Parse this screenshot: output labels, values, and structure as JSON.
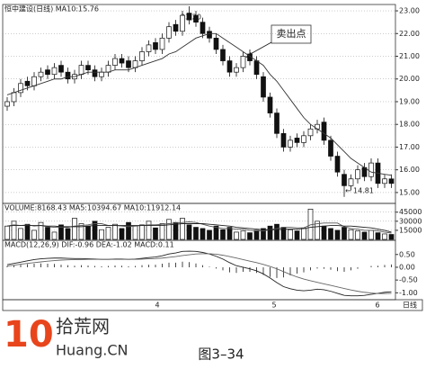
{
  "chart_data": [
    {
      "type": "candlestick",
      "title": "恒中建设(日线) MA10:15.76",
      "open": [
        18.8,
        19.0,
        19.4,
        19.9,
        19.7,
        20.1,
        20.4,
        20.2,
        20.6,
        20.3,
        20.0,
        20.2,
        20.6,
        20.4,
        20.1,
        20.3,
        20.6,
        20.9,
        20.8,
        20.5,
        20.8,
        21.2,
        21.6,
        21.3,
        21.8,
        22.4,
        22.1,
        22.9,
        22.8,
        22.5,
        22.1,
        21.8,
        21.3,
        20.8,
        20.3,
        20.5,
        21.1,
        20.8,
        20.1,
        19.2,
        18.5,
        17.6,
        17.0,
        17.4,
        17.2,
        17.5,
        17.8,
        18.1,
        17.3,
        16.6,
        15.8,
        15.3,
        15.6,
        16.1,
        15.7,
        16.3,
        15.4,
        15.6
      ],
      "high": [
        19.2,
        19.6,
        20.0,
        20.1,
        20.3,
        20.5,
        20.6,
        20.7,
        20.8,
        20.5,
        20.4,
        20.8,
        20.8,
        20.6,
        20.5,
        20.8,
        21.1,
        21.1,
        21.0,
        21.0,
        21.4,
        21.7,
        21.8,
        22.0,
        22.5,
        22.6,
        23.0,
        23.2,
        23.0,
        22.7,
        22.3,
        22.0,
        21.5,
        21.0,
        20.7,
        21.2,
        21.3,
        21.0,
        20.3,
        19.4,
        18.7,
        17.8,
        17.5,
        17.6,
        17.7,
        18.0,
        18.2,
        18.3,
        17.5,
        16.8,
        16.0,
        15.8,
        16.2,
        16.3,
        16.5,
        16.5,
        15.8,
        15.8
      ],
      "low": [
        18.6,
        18.8,
        19.2,
        19.5,
        19.5,
        19.9,
        20.0,
        20.0,
        20.1,
        19.8,
        19.8,
        20.0,
        20.2,
        19.9,
        19.9,
        20.1,
        20.4,
        20.5,
        20.3,
        20.3,
        20.6,
        21.0,
        21.1,
        21.1,
        21.6,
        21.9,
        21.9,
        22.4,
        22.3,
        21.8,
        21.6,
        21.1,
        20.6,
        20.1,
        20.1,
        20.3,
        20.6,
        20.0,
        19.0,
        18.3,
        17.4,
        16.8,
        16.8,
        17.0,
        17.0,
        17.3,
        17.6,
        17.1,
        16.4,
        15.7,
        14.81,
        15.1,
        15.4,
        15.5,
        15.5,
        15.2,
        15.2,
        15.2
      ],
      "close": [
        19.0,
        19.4,
        19.8,
        19.7,
        20.1,
        20.3,
        20.2,
        20.5,
        20.3,
        20.0,
        20.2,
        20.6,
        20.4,
        20.1,
        20.3,
        20.6,
        20.9,
        20.7,
        20.5,
        20.8,
        21.2,
        21.5,
        21.3,
        21.8,
        22.3,
        22.1,
        22.8,
        22.6,
        22.5,
        22.0,
        21.8,
        21.3,
        20.8,
        20.3,
        20.5,
        21.0,
        20.8,
        20.2,
        19.2,
        18.5,
        17.6,
        17.0,
        17.3,
        17.2,
        17.5,
        17.8,
        18.0,
        17.3,
        16.6,
        15.9,
        15.3,
        15.6,
        16.0,
        15.7,
        16.3,
        15.4,
        15.6,
        15.4
      ],
      "ma10": [
        19.3,
        19.4,
        19.5,
        19.6,
        19.7,
        19.8,
        19.9,
        20.0,
        20.0,
        20.1,
        20.1,
        20.2,
        20.3,
        20.3,
        20.3,
        20.3,
        20.4,
        20.4,
        20.4,
        20.5,
        20.6,
        20.7,
        20.8,
        20.9,
        21.1,
        21.2,
        21.4,
        21.6,
        21.8,
        21.9,
        22.0,
        22.0,
        21.8,
        21.6,
        21.4,
        21.2,
        21.0,
        20.8,
        20.6,
        20.2,
        19.9,
        19.5,
        19.1,
        18.7,
        18.3,
        18.0,
        17.8,
        17.6,
        17.4,
        17.1,
        16.8,
        16.5,
        16.3,
        16.1,
        15.9,
        15.85,
        15.8,
        15.76
      ],
      "ylim": [
        14.6,
        23.2
      ],
      "yticks": [
        {
          "value": 23,
          "label": "23.00"
        },
        {
          "value": 22,
          "label": "22.00"
        },
        {
          "value": 21,
          "label": "21.00"
        },
        {
          "value": 20,
          "label": "20.00"
        },
        {
          "value": 19,
          "label": "19.00"
        },
        {
          "value": 18,
          "label": "18.00"
        },
        {
          "value": 17,
          "label": "17.00"
        },
        {
          "value": 16,
          "label": "16.00"
        },
        {
          "value": 15,
          "label": "15.00"
        }
      ],
      "xtick_labels": [
        "4",
        "5",
        "6"
      ],
      "annotations": [
        "23.20",
        "卖出点",
        "14.81"
      ],
      "grid": true
    },
    {
      "type": "volume",
      "title": "VOLUME:8168.43 MA5:10394.67 MA10:11912.14",
      "values": [
        22000,
        30000,
        18000,
        25000,
        15000,
        28000,
        20000,
        12000,
        24000,
        18000,
        35000,
        26000,
        22000,
        30000,
        16000,
        20000,
        25000,
        18000,
        28000,
        22000,
        24000,
        30000,
        19000,
        26000,
        33000,
        28000,
        35000,
        24000,
        20000,
        18000,
        15000,
        22000,
        16000,
        20000,
        12000,
        14000,
        11000,
        15000,
        18000,
        22000,
        25000,
        20000,
        16000,
        14000,
        18000,
        50000,
        30000,
        22000,
        18000,
        15000,
        20000,
        16000,
        14000,
        12000,
        15000,
        11000,
        9000,
        8168.43
      ],
      "ma5": [
        22000,
        24000,
        23000,
        24000,
        22000,
        23000,
        21000,
        20000,
        20000,
        20000,
        22000,
        23000,
        24000,
        26000,
        26000,
        23000,
        23000,
        22000,
        21000,
        22000,
        23000,
        24000,
        24000,
        25000,
        26000,
        27000,
        28000,
        29000,
        28000,
        25000,
        22000,
        20000,
        18000,
        18000,
        17000,
        17000,
        15000,
        14000,
        14000,
        16000,
        18000,
        20000,
        20000,
        19000,
        19000,
        24000,
        26000,
        27000,
        27000,
        27000,
        21000,
        18000,
        17000,
        15000,
        15000,
        14000,
        12000,
        10394.67
      ],
      "ma10": [
        22000,
        23000,
        23000,
        23000,
        23000,
        23000,
        22000,
        22000,
        21000,
        21000,
        21000,
        21000,
        22000,
        23000,
        23000,
        23000,
        23000,
        23000,
        23000,
        23000,
        23000,
        23000,
        23000,
        23000,
        24000,
        25000,
        26000,
        26000,
        26000,
        26000,
        25000,
        24000,
        23000,
        22000,
        20000,
        19000,
        18000,
        17000,
        16000,
        16000,
        16000,
        17000,
        17000,
        17000,
        18000,
        20000,
        21000,
        22000,
        23000,
        23000,
        22000,
        22000,
        21000,
        20000,
        19000,
        17000,
        15000,
        11912.14
      ],
      "ylim": [
        0,
        55000
      ],
      "yticks": [
        45000,
        30000,
        15000
      ],
      "grid": true
    },
    {
      "type": "macd",
      "title": "MACD(12,26,9) DIF:-0.96 DEA:-1.02 MACD:0.11",
      "values": [
        0.05,
        0.08,
        0.1,
        0.12,
        0.14,
        0.15,
        0.14,
        0.13,
        0.1,
        0.08,
        0.06,
        0.08,
        0.07,
        0.05,
        0.04,
        0.05,
        0.07,
        0.06,
        0.04,
        0.05,
        0.08,
        0.1,
        0.1,
        0.14,
        0.18,
        0.18,
        0.22,
        0.2,
        0.15,
        0.08,
        0.02,
        -0.05,
        -0.12,
        -0.2,
        -0.22,
        -0.18,
        -0.18,
        -0.22,
        -0.3,
        -0.38,
        -0.42,
        -0.4,
        -0.32,
        -0.25,
        -0.2,
        -0.12,
        -0.05,
        -0.06,
        -0.1,
        -0.15,
        -0.18,
        -0.12,
        -0.06,
        0.0,
        0.05,
        0.06,
        0.09,
        0.11
      ],
      "dif": [
        0.1,
        0.15,
        0.2,
        0.25,
        0.3,
        0.33,
        0.35,
        0.36,
        0.36,
        0.35,
        0.34,
        0.34,
        0.33,
        0.32,
        0.31,
        0.31,
        0.32,
        0.32,
        0.31,
        0.32,
        0.35,
        0.38,
        0.4,
        0.45,
        0.52,
        0.56,
        0.62,
        0.63,
        0.62,
        0.58,
        0.52,
        0.43,
        0.32,
        0.18,
        0.06,
        0.0,
        -0.06,
        -0.14,
        -0.26,
        -0.42,
        -0.6,
        -0.76,
        -0.84,
        -0.9,
        -0.92,
        -0.9,
        -0.86,
        -0.88,
        -0.94,
        -1.02,
        -1.1,
        -1.12,
        -1.12,
        -1.1,
        -1.06,
        -1.02,
        -0.98,
        -0.96
      ],
      "dea": [
        0.05,
        0.08,
        0.12,
        0.15,
        0.18,
        0.21,
        0.24,
        0.26,
        0.28,
        0.29,
        0.3,
        0.3,
        0.31,
        0.31,
        0.31,
        0.31,
        0.31,
        0.31,
        0.31,
        0.31,
        0.32,
        0.33,
        0.34,
        0.36,
        0.39,
        0.42,
        0.46,
        0.49,
        0.52,
        0.53,
        0.53,
        0.51,
        0.47,
        0.42,
        0.36,
        0.3,
        0.24,
        0.18,
        0.11,
        0.03,
        -0.06,
        -0.17,
        -0.28,
        -0.38,
        -0.46,
        -0.53,
        -0.59,
        -0.65,
        -0.71,
        -0.77,
        -0.83,
        -0.89,
        -0.94,
        -0.98,
        -1.01,
        -1.03,
        -1.03,
        -1.02
      ],
      "ylim": [
        -1.2,
        0.95
      ],
      "yticks": [
        {
          "value": 0.5,
          "label": "0.50"
        },
        {
          "value": 0,
          "label": "0.00"
        },
        {
          "value": -0.5,
          "label": "-0.50"
        },
        {
          "value": -1,
          "label": "-1.00"
        }
      ],
      "grid": false
    }
  ],
  "figure": {
    "caption": "图3–34",
    "logo_number": "10",
    "logo_name": "拾荒网",
    "logo_site": "Huang.CN",
    "period": "日线"
  }
}
